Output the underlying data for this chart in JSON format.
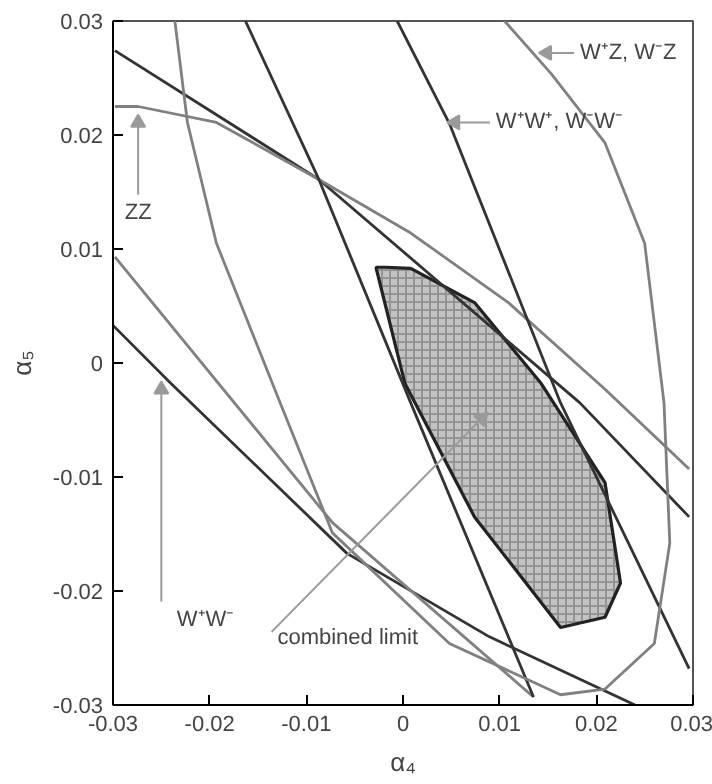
{
  "chart_data": {
    "type": "line",
    "xlabel": "α₄",
    "ylabel": "α₅",
    "xlim": [
      -0.03,
      0.03
    ],
    "ylim": [
      -0.03,
      0.03
    ],
    "xticks": [
      {
        "value": -0.03,
        "label": "-0.03"
      },
      {
        "value": -0.02,
        "label": "-0.02"
      },
      {
        "value": -0.01,
        "label": "-0.01"
      },
      0,
      0.01,
      0.02,
      0.03
    ],
    "yticks": [
      {
        "value": -0.03,
        "label": "-0.03"
      },
      {
        "value": -0.02,
        "label": "-0.02"
      },
      {
        "value": -0.01,
        "label": "-0.01"
      },
      0,
      0.01,
      0.02,
      0.03
    ],
    "grid": false,
    "series": [
      {
        "type": "area",
        "color": "#aaaaaa",
        "x": [
          -0.0028,
          0.0002,
          0.0074,
          0.0163,
          0.0209,
          0.0225,
          0.0209,
          0.0143,
          0.0074,
          0.0008,
          -0.0018,
          -0.0028
        ],
        "values": [
          0.0084,
          -0.0018,
          -0.0135,
          -0.0232,
          -0.0223,
          -0.0193,
          -0.0105,
          -0.0018,
          0.0053,
          0.0083,
          0.0084,
          0.0084
        ]
      },
      {
        "color": "#333333",
        "x": [
          -0.0298,
          -0.0087,
          0.0183,
          0.0296
        ],
        "values": [
          0.0274,
          0.0161,
          -0.0035,
          -0.0135
        ]
      },
      {
        "color": "#333333",
        "x": [
          -0.03,
          -0.024,
          -0.0058,
          0.0089,
          0.024
        ],
        "values": [
          0.0033,
          -0.0018,
          -0.0167,
          -0.024,
          -0.03
        ]
      },
      {
        "color": "#808080",
        "x": [
          -0.0298,
          -0.0274,
          -0.0193,
          -0.0087,
          0.0008,
          0.0109,
          0.0209,
          0.0296
        ],
        "values": [
          0.0225,
          0.0225,
          0.0211,
          0.0161,
          0.0114,
          0.0053,
          -0.0023,
          -0.0093
        ]
      },
      {
        "color": "#808080",
        "x": [
          -0.0298,
          -0.0073,
          0.0135
        ],
        "values": [
          0.0093,
          -0.014,
          -0.0293
        ]
      },
      {
        "color": "#333333",
        "x": [
          -0.0163,
          -0.0087,
          0.0008,
          0.0135
        ],
        "values": [
          0.03,
          0.0161,
          -0.0035,
          -0.0293
        ]
      },
      {
        "color": "#333333",
        "x": [
          -0.0006,
          0.0048,
          0.0163,
          0.0296
        ],
        "values": [
          0.03,
          0.021,
          -0.0035,
          -0.0268
        ]
      },
      {
        "color": "#808080",
        "x": [
          -0.0236,
          -0.0223,
          -0.0193,
          -0.0127,
          -0.0073,
          0.0048,
          0.0163,
          0.0209,
          0.026,
          0.0276,
          0.027,
          0.025,
          0.0209,
          0.0153,
          0.0105
        ],
        "values": [
          0.03,
          0.0211,
          0.0105,
          -0.0035,
          -0.0149,
          -0.0246,
          -0.0291,
          -0.0286,
          -0.0246,
          -0.0158,
          -0.0035,
          0.0105,
          0.0193,
          0.0254,
          0.03
        ]
      }
    ],
    "annotations": [
      {
        "text": "W⁺Z, W⁻Z",
        "x": 0.0143,
        "y": 0.0272
      },
      {
        "text": "W⁺W⁺, W⁻W⁻",
        "x": 0.0048,
        "y": 0.0211
      },
      {
        "text": "ZZ",
        "x": -0.0274,
        "y": 0.0216
      },
      {
        "text": "W⁺W⁻",
        "x": -0.025,
        "y": -0.0018
      },
      "combined limit"
    ]
  }
}
